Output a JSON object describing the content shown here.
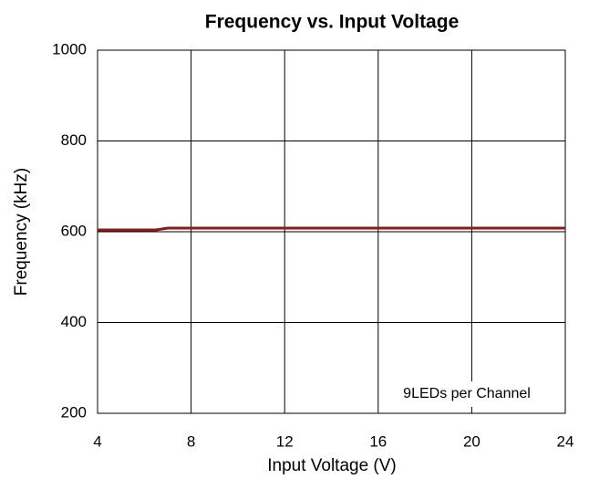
{
  "chart_data": {
    "type": "line",
    "title": "Frequency vs. Input Voltage",
    "xlabel": "Input Voltage (V)",
    "ylabel": "Frequency (kHz)",
    "annotation": "9LEDs per Channel",
    "x": [
      4,
      6.5,
      7,
      24
    ],
    "series": [
      {
        "name": "9LEDs per Channel",
        "color": "#8b1a1a",
        "values": [
          604,
          604,
          608,
          608
        ]
      }
    ],
    "xlim": [
      4,
      24
    ],
    "xticks": [
      4,
      8,
      12,
      16,
      20,
      24
    ],
    "ylim": [
      200,
      1000
    ],
    "yticks": [
      200,
      400,
      600,
      800,
      1000
    ],
    "grid": true
  }
}
